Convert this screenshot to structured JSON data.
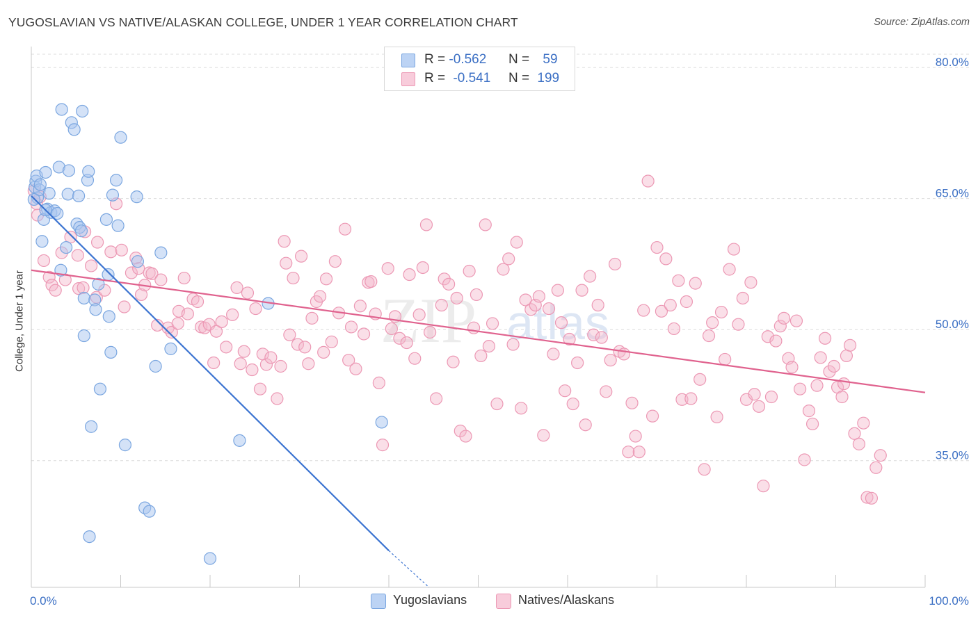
{
  "header": {
    "title": "YUGOSLAVIAN VS NATIVE/ALASKAN COLLEGE, UNDER 1 YEAR CORRELATION CHART",
    "source": "Source: ZipAtlas.com"
  },
  "watermark": {
    "zip": "ZIP",
    "atlas": "atlas"
  },
  "colors": {
    "blue_fill": "#a9c6f0",
    "blue_stroke": "#7aa6e0",
    "blue_line": "#3c74d1",
    "pink_fill": "#f4b8cc",
    "pink_stroke": "#ec98b4",
    "pink_line": "#e0628e",
    "tick_label": "#3b6fc4",
    "grid": "#dcdcdc"
  },
  "legend_top": {
    "rows": [
      {
        "r_label": "R =",
        "r_value": "-0.562",
        "n_label": "N =",
        "n_value": "59"
      },
      {
        "r_label": "R =",
        "r_value": "-0.541",
        "n_label": "N =",
        "n_value": "199"
      }
    ]
  },
  "legend_bottom": {
    "items": [
      "Yugoslavians",
      "Natives/Alaskans"
    ]
  },
  "chart_data": {
    "type": "scatter",
    "title": "YUGOSLAVIAN VS NATIVE/ALASKAN COLLEGE, UNDER 1 YEAR CORRELATION CHART",
    "xlabel": "",
    "ylabel": "College, Under 1 year",
    "xlim": [
      0,
      100
    ],
    "ylim": [
      20.5,
      82
    ],
    "x_tick_labels": [
      "0.0%",
      "100.0%"
    ],
    "y_ticks": [
      35,
      50,
      65,
      80
    ],
    "y_tick_labels": [
      "35.0%",
      "50.0%",
      "65.0%",
      "80.0%"
    ],
    "grid": "horizontal dashed",
    "legend_placement": "top-center and bottom",
    "series": [
      {
        "name": "Yugoslavians",
        "color": "#a9c6f0",
        "stats": {
          "R": -0.562,
          "N": 59
        },
        "trend": {
          "x": [
            0,
            40
          ],
          "y": [
            65.3,
            24.7
          ],
          "dashed_to": [
            44.5,
            20.5
          ]
        },
        "points": [
          [
            0.4,
            66.3
          ],
          [
            0.5,
            67.0
          ],
          [
            0.6,
            67.6
          ],
          [
            0.7,
            65.1
          ],
          [
            0.9,
            66.0
          ],
          [
            1.0,
            66.6
          ],
          [
            1.2,
            60.1
          ],
          [
            1.4,
            62.6
          ],
          [
            1.6,
            68.0
          ],
          [
            1.8,
            63.8
          ],
          [
            2.0,
            65.6
          ],
          [
            2.2,
            63.4
          ],
          [
            2.6,
            63.6
          ],
          [
            2.9,
            63.3
          ],
          [
            3.1,
            68.6
          ],
          [
            3.3,
            56.8
          ],
          [
            3.4,
            75.2
          ],
          [
            3.9,
            59.4
          ],
          [
            4.1,
            65.5
          ],
          [
            4.2,
            68.2
          ],
          [
            4.5,
            73.7
          ],
          [
            4.8,
            72.9
          ],
          [
            5.1,
            62.1
          ],
          [
            5.4,
            61.7
          ],
          [
            5.3,
            65.3
          ],
          [
            5.6,
            61.3
          ],
          [
            5.7,
            75.0
          ],
          [
            5.9,
            53.6
          ],
          [
            5.9,
            49.3
          ],
          [
            6.3,
            67.1
          ],
          [
            6.4,
            68.1
          ],
          [
            6.5,
            26.3
          ],
          [
            6.7,
            38.9
          ],
          [
            7.1,
            53.4
          ],
          [
            7.2,
            52.3
          ],
          [
            7.5,
            55.2
          ],
          [
            7.7,
            43.2
          ],
          [
            8.4,
            62.6
          ],
          [
            8.6,
            56.3
          ],
          [
            8.7,
            51.5
          ],
          [
            8.9,
            47.4
          ],
          [
            9.1,
            65.4
          ],
          [
            9.5,
            67.1
          ],
          [
            9.7,
            61.9
          ],
          [
            10.0,
            72.0
          ],
          [
            10.5,
            36.8
          ],
          [
            11.8,
            65.2
          ],
          [
            11.9,
            57.8
          ],
          [
            12.7,
            29.6
          ],
          [
            13.2,
            29.2
          ],
          [
            13.9,
            45.8
          ],
          [
            14.5,
            58.8
          ],
          [
            15.6,
            47.8
          ],
          [
            20.0,
            23.8
          ],
          [
            23.3,
            37.3
          ],
          [
            26.5,
            53.0
          ],
          [
            39.2,
            39.4
          ],
          [
            0.3,
            64.9
          ],
          [
            1.6,
            63.7
          ]
        ]
      },
      {
        "name": "Natives/Alaskans",
        "color": "#f4b8cc",
        "stats": {
          "R": -0.541,
          "N": 199
        },
        "trend": {
          "x": [
            0,
            100
          ],
          "y": [
            56.8,
            42.8
          ]
        },
        "points": [
          [
            0.3,
            65.9
          ],
          [
            0.6,
            64.4
          ],
          [
            0.7,
            63.1
          ],
          [
            1.0,
            65.2
          ],
          [
            1.4,
            57.9
          ],
          [
            2.0,
            56.0
          ],
          [
            2.3,
            55.1
          ],
          [
            2.7,
            54.5
          ],
          [
            3.4,
            58.8
          ],
          [
            3.8,
            55.7
          ],
          [
            4.4,
            60.6
          ],
          [
            5.2,
            58.5
          ],
          [
            5.3,
            54.7
          ],
          [
            5.8,
            54.8
          ],
          [
            6.0,
            61.2
          ],
          [
            6.7,
            57.3
          ],
          [
            7.3,
            53.7
          ],
          [
            7.4,
            60.0
          ],
          [
            8.2,
            54.5
          ],
          [
            8.9,
            58.9
          ],
          [
            9.5,
            64.4
          ],
          [
            10.1,
            59.1
          ],
          [
            10.4,
            52.6
          ],
          [
            11.2,
            56.5
          ],
          [
            11.7,
            58.2
          ],
          [
            12.0,
            57.0
          ],
          [
            12.3,
            54.0
          ],
          [
            12.7,
            55.1
          ],
          [
            13.2,
            56.5
          ],
          [
            13.5,
            56.4
          ],
          [
            14.1,
            50.5
          ],
          [
            14.5,
            55.7
          ],
          [
            15.3,
            50.2
          ],
          [
            15.7,
            49.7
          ],
          [
            16.4,
            50.7
          ],
          [
            16.5,
            52.1
          ],
          [
            17.1,
            55.9
          ],
          [
            17.5,
            51.8
          ],
          [
            18.1,
            53.5
          ],
          [
            18.6,
            53.2
          ],
          [
            19.0,
            50.3
          ],
          [
            19.4,
            50.2
          ],
          [
            19.9,
            50.6
          ],
          [
            20.4,
            46.2
          ],
          [
            20.7,
            49.8
          ],
          [
            21.3,
            50.9
          ],
          [
            21.8,
            48.0
          ],
          [
            22.5,
            51.7
          ],
          [
            23.0,
            54.8
          ],
          [
            23.4,
            46.1
          ],
          [
            23.8,
            47.5
          ],
          [
            24.2,
            54.2
          ],
          [
            24.7,
            45.4
          ],
          [
            25.1,
            52.4
          ],
          [
            25.6,
            43.2
          ],
          [
            25.9,
            47.2
          ],
          [
            26.3,
            46.0
          ],
          [
            26.8,
            46.8
          ],
          [
            27.5,
            42.1
          ],
          [
            27.9,
            45.8
          ],
          [
            28.3,
            60.1
          ],
          [
            28.5,
            57.6
          ],
          [
            28.9,
            49.4
          ],
          [
            29.3,
            55.9
          ],
          [
            29.8,
            48.3
          ],
          [
            30.2,
            58.4
          ],
          [
            30.6,
            48.0
          ],
          [
            31.0,
            46.1
          ],
          [
            31.4,
            51.3
          ],
          [
            31.9,
            53.2
          ],
          [
            32.3,
            53.8
          ],
          [
            32.7,
            47.4
          ],
          [
            33.0,
            55.8
          ],
          [
            33.6,
            48.6
          ],
          [
            34.0,
            57.8
          ],
          [
            34.4,
            51.9
          ],
          [
            35.1,
            61.5
          ],
          [
            35.5,
            46.5
          ],
          [
            35.8,
            50.3
          ],
          [
            36.3,
            45.5
          ],
          [
            36.8,
            52.7
          ],
          [
            37.2,
            49.5
          ],
          [
            37.7,
            55.4
          ],
          [
            38.0,
            55.5
          ],
          [
            38.5,
            51.8
          ],
          [
            38.9,
            43.9
          ],
          [
            39.3,
            36.8
          ],
          [
            39.9,
            57.0
          ],
          [
            40.3,
            50.1
          ],
          [
            40.7,
            51.5
          ],
          [
            41.2,
            49.0
          ],
          [
            42.0,
            48.5
          ],
          [
            42.3,
            56.3
          ],
          [
            42.9,
            46.7
          ],
          [
            43.4,
            51.7
          ],
          [
            43.8,
            57.1
          ],
          [
            44.2,
            62.0
          ],
          [
            44.6,
            49.7
          ],
          [
            45.3,
            42.1
          ],
          [
            45.9,
            52.8
          ],
          [
            46.2,
            55.8
          ],
          [
            46.7,
            55.2
          ],
          [
            47.2,
            46.3
          ],
          [
            47.6,
            53.6
          ],
          [
            48.0,
            38.4
          ],
          [
            48.6,
            37.8
          ],
          [
            49.0,
            56.7
          ],
          [
            49.5,
            50.2
          ],
          [
            49.8,
            54.0
          ],
          [
            50.3,
            47.0
          ],
          [
            50.8,
            62.0
          ],
          [
            51.2,
            48.1
          ],
          [
            51.6,
            50.7
          ],
          [
            52.1,
            41.5
          ],
          [
            52.8,
            56.9
          ],
          [
            53.4,
            58.1
          ],
          [
            53.9,
            48.3
          ],
          [
            54.3,
            60.0
          ],
          [
            54.8,
            41.0
          ],
          [
            55.3,
            53.4
          ],
          [
            55.9,
            52.3
          ],
          [
            56.4,
            52.8
          ],
          [
            56.8,
            53.8
          ],
          [
            57.3,
            37.9
          ],
          [
            57.9,
            52.4
          ],
          [
            58.4,
            47.2
          ],
          [
            58.9,
            54.5
          ],
          [
            59.3,
            50.8
          ],
          [
            59.7,
            43.0
          ],
          [
            60.2,
            48.9
          ],
          [
            60.6,
            41.5
          ],
          [
            61.1,
            46.2
          ],
          [
            61.6,
            54.5
          ],
          [
            62.0,
            39.1
          ],
          [
            62.5,
            56.1
          ],
          [
            62.9,
            49.4
          ],
          [
            63.4,
            52.8
          ],
          [
            63.8,
            49.1
          ],
          [
            64.3,
            42.9
          ],
          [
            64.8,
            46.5
          ],
          [
            65.3,
            57.5
          ],
          [
            65.8,
            47.5
          ],
          [
            66.3,
            47.2
          ],
          [
            66.8,
            36.0
          ],
          [
            67.2,
            41.6
          ],
          [
            67.6,
            37.8
          ],
          [
            68.0,
            36.0
          ],
          [
            68.5,
            52.2
          ],
          [
            69.0,
            67.0
          ],
          [
            69.5,
            40.1
          ],
          [
            70.0,
            59.4
          ],
          [
            70.5,
            52.1
          ],
          [
            71.0,
            58.1
          ],
          [
            71.5,
            52.8
          ],
          [
            71.9,
            50.1
          ],
          [
            72.4,
            55.6
          ],
          [
            72.8,
            42.0
          ],
          [
            73.3,
            53.2
          ],
          [
            73.8,
            42.1
          ],
          [
            74.3,
            55.3
          ],
          [
            74.8,
            44.3
          ],
          [
            75.3,
            34.0
          ],
          [
            75.8,
            49.3
          ],
          [
            76.2,
            50.8
          ],
          [
            76.7,
            40.0
          ],
          [
            77.2,
            52.0
          ],
          [
            77.6,
            46.6
          ],
          [
            78.1,
            56.9
          ],
          [
            78.6,
            59.2
          ],
          [
            79.1,
            50.6
          ],
          [
            79.6,
            53.6
          ],
          [
            80.0,
            42.0
          ],
          [
            80.5,
            55.4
          ],
          [
            80.9,
            42.6
          ],
          [
            81.4,
            41.2
          ],
          [
            81.9,
            32.1
          ],
          [
            82.4,
            49.2
          ],
          [
            82.8,
            42.3
          ],
          [
            83.3,
            48.7
          ],
          [
            83.8,
            50.4
          ],
          [
            84.2,
            51.3
          ],
          [
            84.7,
            46.7
          ],
          [
            85.1,
            45.7
          ],
          [
            85.6,
            51.0
          ],
          [
            86.0,
            43.2
          ],
          [
            86.5,
            35.1
          ],
          [
            87.0,
            40.7
          ],
          [
            87.4,
            39.2
          ],
          [
            87.9,
            43.6
          ],
          [
            88.3,
            46.8
          ],
          [
            88.8,
            49.0
          ],
          [
            89.3,
            45.2
          ],
          [
            89.8,
            45.8
          ],
          [
            90.2,
            43.4
          ],
          [
            90.7,
            42.3
          ],
          [
            91.2,
            47.0
          ],
          [
            91.6,
            48.2
          ],
          [
            92.1,
            38.1
          ],
          [
            92.6,
            36.9
          ],
          [
            93.1,
            39.3
          ],
          [
            93.5,
            30.8
          ],
          [
            94.0,
            30.7
          ],
          [
            94.5,
            34.2
          ],
          [
            95.0,
            35.6
          ],
          [
            90.9,
            43.8
          ]
        ]
      }
    ]
  }
}
